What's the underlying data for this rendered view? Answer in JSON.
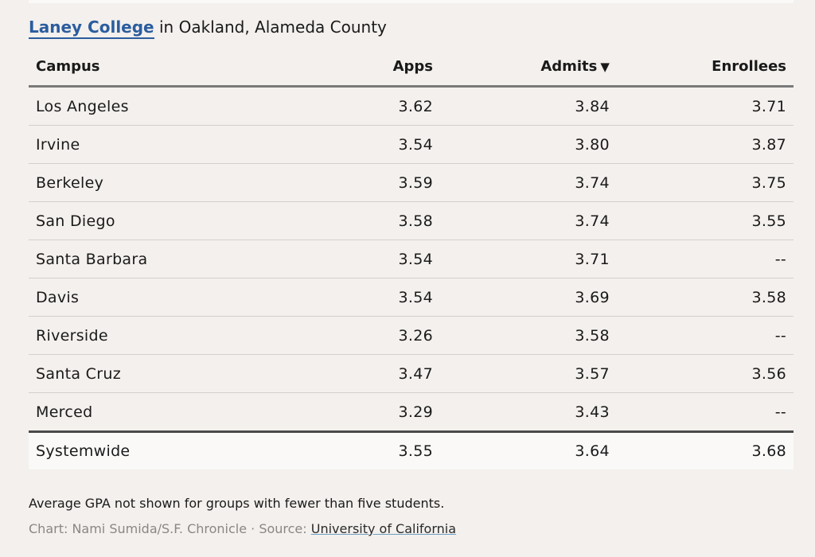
{
  "heading": {
    "college": "Laney College",
    "rest": " in Oakland, Alameda County"
  },
  "chart_data": {
    "type": "table",
    "columns": [
      "Campus",
      "Apps",
      "Admits",
      "Enrollees"
    ],
    "sort_indicator": "▼",
    "rows": [
      {
        "campus": "Los Angeles",
        "apps": "3.62",
        "admits": "3.84",
        "enrollees": "3.71"
      },
      {
        "campus": "Irvine",
        "apps": "3.54",
        "admits": "3.80",
        "enrollees": "3.87"
      },
      {
        "campus": "Berkeley",
        "apps": "3.59",
        "admits": "3.74",
        "enrollees": "3.75"
      },
      {
        "campus": "San Diego",
        "apps": "3.58",
        "admits": "3.74",
        "enrollees": "3.55"
      },
      {
        "campus": "Santa Barbara",
        "apps": "3.54",
        "admits": "3.71",
        "enrollees": "--"
      },
      {
        "campus": "Davis",
        "apps": "3.54",
        "admits": "3.69",
        "enrollees": "3.58"
      },
      {
        "campus": "Riverside",
        "apps": "3.26",
        "admits": "3.58",
        "enrollees": "--"
      },
      {
        "campus": "Santa Cruz",
        "apps": "3.47",
        "admits": "3.57",
        "enrollees": "3.56"
      },
      {
        "campus": "Merced",
        "apps": "3.29",
        "admits": "3.43",
        "enrollees": "--"
      }
    ],
    "total": {
      "campus": "Systemwide",
      "apps": "3.55",
      "admits": "3.64",
      "enrollees": "3.68"
    }
  },
  "footer": {
    "note": "Average GPA not shown for groups with fewer than five students.",
    "credit": "Chart: Nami Sumida/S.F. Chronicle · Source: ",
    "source_link": "University of California"
  }
}
